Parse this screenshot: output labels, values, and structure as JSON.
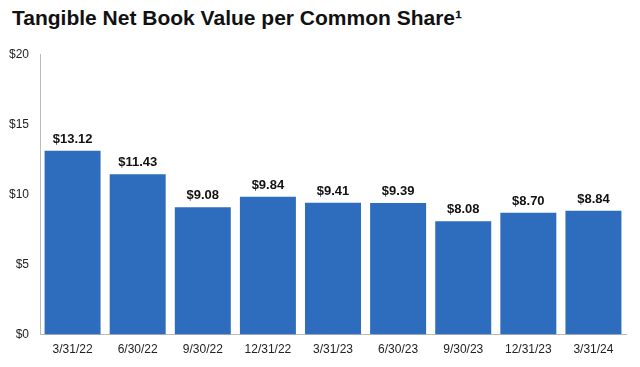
{
  "chart_data": {
    "type": "bar",
    "title": "Tangible Net Book Value per Common Share¹",
    "categories": [
      "3/31/22",
      "6/30/22",
      "9/30/22",
      "12/31/22",
      "3/31/23",
      "6/30/23",
      "9/30/23",
      "12/31/23",
      "3/31/24"
    ],
    "values": [
      13.12,
      11.43,
      9.08,
      9.84,
      9.41,
      9.39,
      8.08,
      8.7,
      8.84
    ],
    "value_labels": [
      "$13.12",
      "$11.43",
      "$9.08",
      "$9.84",
      "$9.41",
      "$9.39",
      "$8.08",
      "$8.70",
      "$8.84"
    ],
    "color": "#2e6dbd",
    "ylim": [
      0,
      20
    ],
    "yticks": [
      {
        "value": 0,
        "label": "$0"
      },
      {
        "value": 5,
        "label": "$5"
      },
      {
        "value": 10,
        "label": "$10"
      },
      {
        "value": 15,
        "label": "$15"
      },
      {
        "value": 20,
        "label": "$20"
      }
    ],
    "grid": false,
    "data_labels": true
  }
}
